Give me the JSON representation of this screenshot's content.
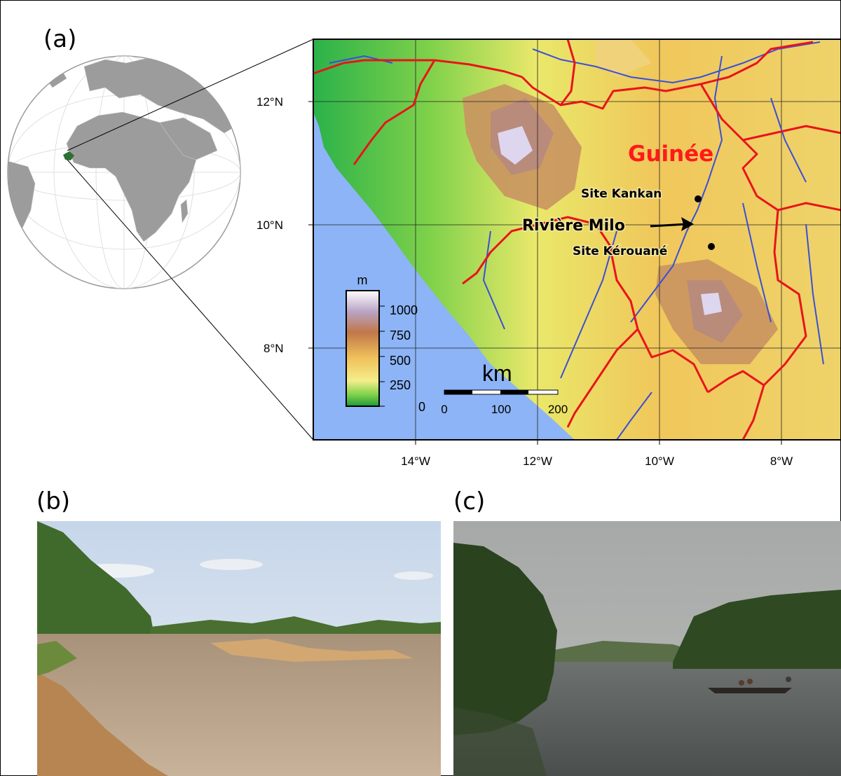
{
  "panels": {
    "a": "(a)",
    "b": "(b)",
    "c": "(c)"
  },
  "map": {
    "country_label": "Guinée",
    "country_label_color": "#ff1a1a",
    "river_label": "Rivière Milo",
    "sites": [
      "Site Kankan",
      "Site Kérouané"
    ],
    "lat_labels": [
      "12°N",
      "10°N",
      "8°N"
    ],
    "lon_labels": [
      "14°W",
      "12°W",
      "10°W",
      "8°W"
    ],
    "border_color": "#e8141a",
    "river_color": "#3a4fd8",
    "ocean_color": "#8cb4f6"
  },
  "elevation_legend": {
    "unit": "m",
    "ticks": [
      "1000",
      "750",
      "500",
      "250",
      "0"
    ]
  },
  "scale_bar": {
    "unit": "km",
    "ticks": [
      "0",
      "100",
      "200"
    ]
  }
}
